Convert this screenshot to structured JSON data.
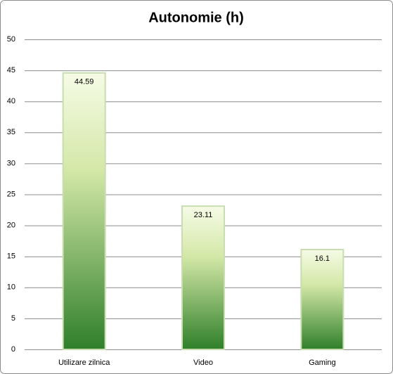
{
  "chart_data": {
    "type": "bar",
    "title": "Autonomie (h)",
    "categories": [
      "Utilizare zilnica",
      "Video",
      "Gaming"
    ],
    "values": [
      44.59,
      23.11,
      16.1
    ],
    "color": "#2f7f2a",
    "ylim": [
      0,
      50
    ],
    "yticks": [
      0,
      5,
      10,
      15,
      20,
      25,
      30,
      35,
      40,
      45,
      50
    ],
    "grid": true
  }
}
